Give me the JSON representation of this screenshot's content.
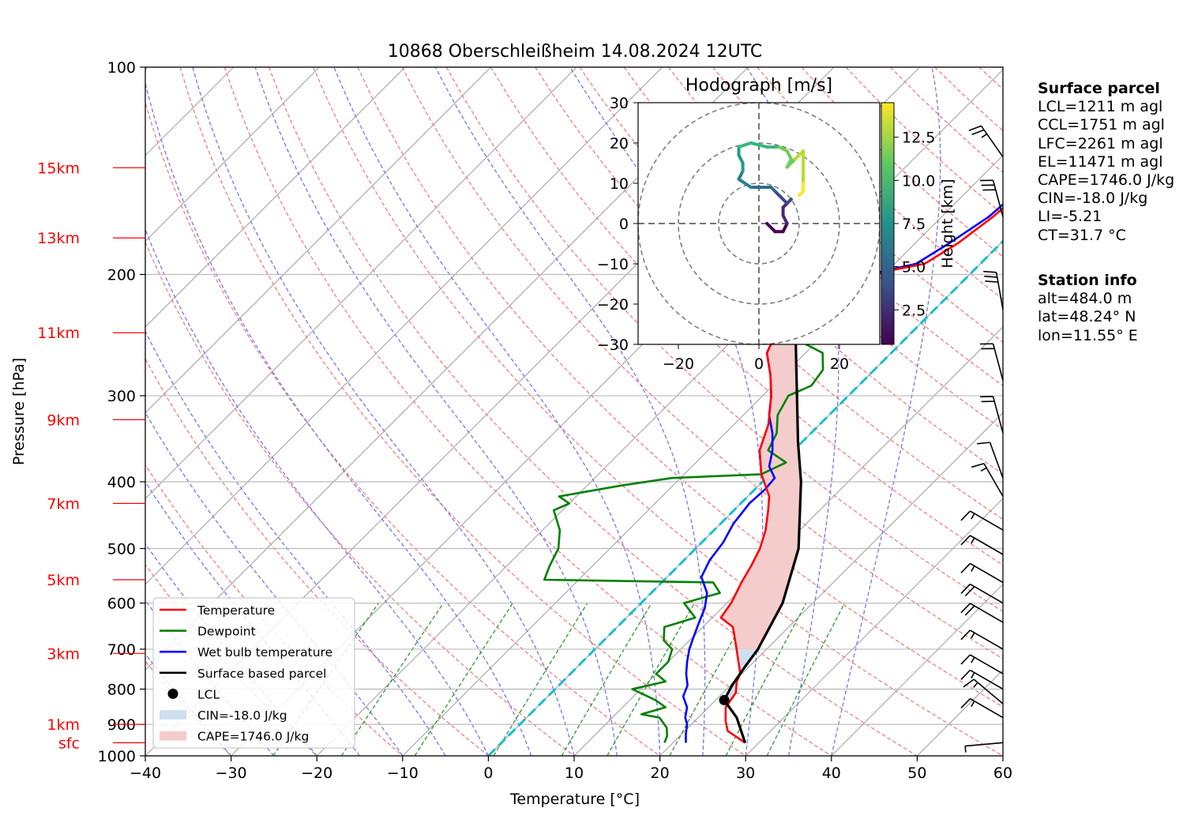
{
  "chart_data": [
    {
      "type": "line",
      "title": "10868 Oberschleißheim 14.08.2024 12UTC",
      "xlabel": "Temperature [°C]",
      "ylabel": "Pressure [hPa]",
      "xlim": [
        -40,
        60
      ],
      "ylim": [
        1000,
        100
      ],
      "y_scale": "log",
      "x_ticks": [
        "−40",
        "−30",
        "−20",
        "−10",
        "0",
        "10",
        "20",
        "30",
        "40",
        "50",
        "60"
      ],
      "x_tick_values": [
        -40,
        -30,
        -20,
        -10,
        0,
        10,
        20,
        30,
        40,
        50,
        60
      ],
      "y_ticks": [
        "1000",
        "900",
        "800",
        "700",
        "600",
        "500",
        "400",
        "300",
        "200",
        "100"
      ],
      "y_tick_values": [
        1000,
        900,
        800,
        700,
        600,
        500,
        400,
        300,
        200,
        100
      ],
      "height_labels": [
        {
          "label": "sfc",
          "p": 957
        },
        {
          "label": "1km",
          "p": 900
        },
        {
          "label": "3km",
          "p": 710
        },
        {
          "label": "5km",
          "p": 555
        },
        {
          "label": "7km",
          "p": 430
        },
        {
          "label": "9km",
          "p": 325
        },
        {
          "label": "11km",
          "p": 243
        },
        {
          "label": "13km",
          "p": 177
        },
        {
          "label": "15km",
          "p": 140
        }
      ],
      "legend_position": "lower-left",
      "legend": [
        {
          "label": "Temperature",
          "kind": "line",
          "color": "#ff0000"
        },
        {
          "label": "Dewpoint",
          "kind": "line",
          "color": "#008000"
        },
        {
          "label": "Wet bulb temperature",
          "kind": "line",
          "color": "#0000ff"
        },
        {
          "label": "Surface based parcel",
          "kind": "line",
          "color": "#000000"
        },
        {
          "label": "LCL",
          "kind": "dot",
          "color": "#000000"
        },
        {
          "label": "CIN=-18.0 J/kg",
          "kind": "patch",
          "color": "#cfdfee"
        },
        {
          "label": "CAPE=1746.0 J/kg",
          "kind": "patch",
          "color": "#f4cccc"
        }
      ],
      "series": [
        {
          "name": "Temperature",
          "color": "#ff0000",
          "points": [
            [
              957,
              28.4
            ],
            [
              920,
              25.0
            ],
            [
              890,
              23.6
            ],
            [
              850,
              22.0
            ],
            [
              810,
              21.5
            ],
            [
              780,
              20.3
            ],
            [
              760,
              19.8
            ],
            [
              700,
              16.5
            ],
            [
              650,
              13.5
            ],
            [
              630,
              11.0
            ],
            [
              600,
              10.5
            ],
            [
              560,
              9.3
            ],
            [
              530,
              8.5
            ],
            [
              500,
              7.5
            ],
            [
              470,
              6.0
            ],
            [
              440,
              4.0
            ],
            [
              420,
              2.5
            ],
            [
              390,
              -1.0
            ],
            [
              360,
              -4.0
            ],
            [
              330,
              -6.0
            ],
            [
              300,
              -9.0
            ],
            [
              280,
              -11.5
            ],
            [
              260,
              -14.5
            ],
            [
              240,
              -16.0
            ],
            [
              220,
              -17.5
            ],
            [
              210,
              -17.0
            ],
            [
              205,
              -16.0
            ],
            [
              202,
              -12.0
            ],
            [
              197,
              -9.5
            ],
            [
              193,
              -6.5
            ],
            [
              180,
              -5.0
            ],
            [
              165,
              -4.0
            ],
            [
              150,
              -3.5
            ],
            [
              140,
              -3.0
            ],
            [
              135,
              -3.2
            ]
          ]
        },
        {
          "name": "Dewpoint",
          "color": "#008000",
          "points": [
            [
              957,
              19.0
            ],
            [
              935,
              18.5
            ],
            [
              910,
              17.5
            ],
            [
              880,
              15.5
            ],
            [
              870,
              13.0
            ],
            [
              850,
              15.0
            ],
            [
              830,
              13.0
            ],
            [
              800,
              9.0
            ],
            [
              780,
              12.0
            ],
            [
              760,
              10.0
            ],
            [
              730,
              10.0
            ],
            [
              700,
              9.0
            ],
            [
              680,
              7.0
            ],
            [
              650,
              5.5
            ],
            [
              630,
              8.0
            ],
            [
              600,
              5.0
            ],
            [
              580,
              8.0
            ],
            [
              560,
              6.0
            ],
            [
              555,
              -14.0
            ],
            [
              530,
              -15.0
            ],
            [
              500,
              -16.0
            ],
            [
              470,
              -18.0
            ],
            [
              440,
              -21.0
            ],
            [
              430,
              -20.0
            ],
            [
              420,
              -22.0
            ],
            [
              405,
              -16.0
            ],
            [
              395,
              -11.0
            ],
            [
              390,
              -1.0
            ],
            [
              375,
              0.5
            ],
            [
              360,
              -3.0
            ],
            [
              340,
              -4.0
            ],
            [
              320,
              -6.0
            ],
            [
              300,
              -7.0
            ],
            [
              290,
              -5.5
            ],
            [
              275,
              -6.0
            ],
            [
              260,
              -8.0
            ],
            [
              250,
              -12.0
            ],
            [
              240,
              -17.0
            ],
            [
              225,
              -20.0
            ],
            [
              215,
              -24.0
            ],
            [
              200,
              -26.0
            ],
            [
              190,
              -28.0
            ],
            [
              175,
              -29.0
            ],
            [
              160,
              -29.0
            ],
            [
              145,
              -28.0
            ],
            [
              135,
              -26.0
            ]
          ]
        },
        {
          "name": "Wet bulb temperature",
          "color": "#0000ff",
          "points": [
            [
              957,
              21.5
            ],
            [
              930,
              20.5
            ],
            [
              900,
              19.5
            ],
            [
              880,
              18.5
            ],
            [
              850,
              17.5
            ],
            [
              820,
              15.8
            ],
            [
              790,
              15.0
            ],
            [
              760,
              13.5
            ],
            [
              730,
              12.2
            ],
            [
              700,
              11.0
            ],
            [
              670,
              10.0
            ],
            [
              640,
              9.0
            ],
            [
              610,
              8.0
            ],
            [
              580,
              6.5
            ],
            [
              550,
              4.0
            ],
            [
              520,
              3.0
            ],
            [
              490,
              2.5
            ],
            [
              460,
              1.5
            ],
            [
              430,
              1.0
            ],
            [
              410,
              1.2
            ],
            [
              395,
              1.0
            ],
            [
              380,
              -1.0
            ],
            [
              360,
              -2.5
            ],
            [
              340,
              -4.5
            ],
            [
              320,
              -7.0
            ],
            [
              300,
              -9.0
            ],
            [
              280,
              -11.5
            ],
            [
              260,
              -14.5
            ],
            [
              240,
              -16.0
            ],
            [
              220,
              -17.5
            ],
            [
              210,
              -17.0
            ],
            [
              205,
              -16.0
            ],
            [
              202,
              -12.5
            ],
            [
              197,
              -10.0
            ],
            [
              193,
              -7.5
            ],
            [
              180,
              -6.0
            ],
            [
              165,
              -4.5
            ],
            [
              150,
              -4.0
            ],
            [
              140,
              -3.5
            ],
            [
              135,
              -3.5
            ]
          ]
        },
        {
          "name": "Surface based parcel",
          "color": "#000000",
          "points": [
            [
              957,
              28.4
            ],
            [
              880,
              24.5
            ],
            [
              830,
              21.0
            ],
            [
              790,
              20.2
            ],
            [
              740,
              19.5
            ],
            [
              700,
              19.0
            ],
            [
              600,
              16.5
            ],
            [
              500,
              12.0
            ],
            [
              400,
              4.5
            ],
            [
              350,
              -0.5
            ],
            [
              300,
              -6.0
            ],
            [
              250,
              -12.5
            ],
            [
              200,
              -21.0
            ],
            [
              170,
              -27.0
            ],
            [
              150,
              -31.5
            ],
            [
              140,
              -34.0
            ]
          ]
        }
      ],
      "lcl": {
        "p": 830,
        "t": 21.0
      },
      "cin": "CIN=-18.0 J/kg",
      "cape": "CAPE=1746.0 J/kg",
      "wind_barbs": [
        {
          "p": 957,
          "speed_kt": 5,
          "dir_deg": 265
        },
        {
          "p": 880,
          "speed_kt": 15,
          "dir_deg": 300
        },
        {
          "p": 840,
          "speed_kt": 15,
          "dir_deg": 310
        },
        {
          "p": 800,
          "speed_kt": 15,
          "dir_deg": 300
        },
        {
          "p": 760,
          "speed_kt": 15,
          "dir_deg": 300
        },
        {
          "p": 700,
          "speed_kt": 15,
          "dir_deg": 300
        },
        {
          "p": 640,
          "speed_kt": 20,
          "dir_deg": 300
        },
        {
          "p": 600,
          "speed_kt": 20,
          "dir_deg": 300
        },
        {
          "p": 560,
          "speed_kt": 15,
          "dir_deg": 300
        },
        {
          "p": 510,
          "speed_kt": 15,
          "dir_deg": 300
        },
        {
          "p": 470,
          "speed_kt": 15,
          "dir_deg": 300
        },
        {
          "p": 420,
          "speed_kt": 15,
          "dir_deg": 330
        },
        {
          "p": 395,
          "speed_kt": 10,
          "dir_deg": 340
        },
        {
          "p": 340,
          "speed_kt": 20,
          "dir_deg": 345
        },
        {
          "p": 285,
          "speed_kt": 20,
          "dir_deg": 345
        },
        {
          "p": 225,
          "speed_kt": 30,
          "dir_deg": 350
        },
        {
          "p": 165,
          "speed_kt": 30,
          "dir_deg": 345
        },
        {
          "p": 135,
          "speed_kt": 25,
          "dir_deg": 325
        }
      ]
    },
    {
      "type": "line",
      "title": "Hodograph [m/s]",
      "xlim": [
        -30,
        30
      ],
      "ylim": [
        -30,
        30
      ],
      "x_ticks": [
        "−20",
        "0",
        "20"
      ],
      "x_tick_values": [
        -20,
        0,
        20
      ],
      "y_ticks": [
        "−30",
        "−20",
        "−10",
        "0",
        "10",
        "20",
        "30"
      ],
      "y_tick_values": [
        -30,
        -20,
        -10,
        0,
        10,
        20,
        30
      ],
      "rings": [
        10,
        20,
        30
      ],
      "colorbar_label": "Height [km]",
      "colorbar_ticks": [
        "2.5",
        "5.0",
        "7.5",
        "10.0",
        "12.5"
      ],
      "colorbar_values": [
        2.5,
        5.0,
        7.5,
        10.0,
        12.5
      ],
      "height_range": [
        0.5,
        14.5
      ],
      "points": [
        [
          2,
          0,
          0.5
        ],
        [
          4,
          -2,
          1.0
        ],
        [
          6,
          -2,
          1.5
        ],
        [
          7,
          0,
          2.0
        ],
        [
          6,
          2,
          2.5
        ],
        [
          6,
          4,
          3.0
        ],
        [
          8,
          6,
          3.5
        ],
        [
          7,
          5,
          4.0
        ],
        [
          5,
          7,
          4.5
        ],
        [
          4,
          8,
          5.0
        ],
        [
          3,
          9,
          5.5
        ],
        [
          0,
          9,
          6.0
        ],
        [
          -2,
          9,
          6.5
        ],
        [
          -5,
          11,
          7.0
        ],
        [
          -4,
          13,
          7.5
        ],
        [
          -4,
          15,
          8.0
        ],
        [
          -5,
          17,
          8.5
        ],
        [
          -5,
          19,
          9.0
        ],
        [
          -2,
          20,
          9.5
        ],
        [
          2,
          19,
          10.0
        ],
        [
          5,
          19,
          10.5
        ],
        [
          7,
          18,
          11.0
        ],
        [
          8,
          16,
          11.5
        ],
        [
          7,
          14,
          11.5
        ],
        [
          9,
          16,
          12.0
        ],
        [
          11,
          18,
          12.5
        ],
        [
          11,
          14,
          13.0
        ],
        [
          11,
          10,
          13.5
        ],
        [
          11,
          8,
          14.0
        ],
        [
          10,
          7,
          14.5
        ]
      ]
    }
  ],
  "surface_parcel": {
    "heading": "Surface parcel",
    "lines": [
      "LCL=1211 m agl",
      "CCL=1751 m agl",
      "LFC=2261 m agl",
      "EL=11471 m agl",
      "CAPE=1746.0 J/kg",
      "CIN=-18.0 J/kg",
      "LI=-5.21",
      "CT=31.7 °C"
    ]
  },
  "station_info": {
    "heading": "Station info",
    "lines": [
      "alt=484.0 m",
      "lat=48.24° N",
      "lon=11.55° E"
    ]
  }
}
